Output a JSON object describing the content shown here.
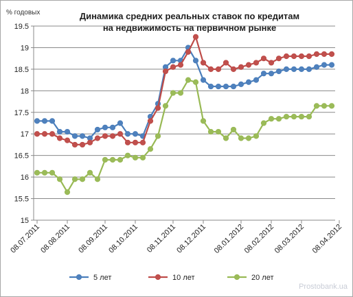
{
  "chart_data": {
    "type": "line",
    "title": [
      "Динамика средних реальных ставок по кредитам",
      "на недвижимость  на первичном рынке"
    ],
    "ylabel": "% годовых",
    "xlabel": "",
    "ylim": [
      15,
      19.5
    ],
    "y_ticks": [
      "15",
      "15.5",
      "16",
      "16.5",
      "17",
      "17.5",
      "18",
      "18.5",
      "19",
      "19.5"
    ],
    "x_tick_labels": [
      "08.07.2011",
      "08.08.2011",
      "08.09.2011",
      "08.10.2011",
      "08.11.2011",
      "08.12.2011",
      "08.01.2012",
      "08.02.2012",
      "08.03.2012",
      "08.04.2012"
    ],
    "x_tick_indices": [
      0,
      4,
      9,
      13,
      18,
      22,
      27,
      31,
      35,
      40
    ],
    "grid": "horizontal",
    "legend_position": "bottom",
    "colors": {
      "grid": "#888888",
      "axis": "#888888"
    },
    "series": [
      {
        "name": "5 лет",
        "color": "#4a7ebb",
        "marker_fill": "#4f81bd",
        "values": [
          17.3,
          17.3,
          17.3,
          17.05,
          17.05,
          16.95,
          16.95,
          16.9,
          17.1,
          17.15,
          17.15,
          17.25,
          17.0,
          17.0,
          16.95,
          17.4,
          17.7,
          18.55,
          18.7,
          18.7,
          19.0,
          18.7,
          18.25,
          18.1,
          18.1,
          18.1,
          18.1,
          18.15,
          18.2,
          18.25,
          18.4,
          18.4,
          18.45,
          18.5,
          18.5,
          18.5,
          18.5,
          18.55,
          18.6,
          18.6
        ]
      },
      {
        "name": "10 лет",
        "color": "#be4b48",
        "marker_fill": "#c0504d",
        "values": [
          17.0,
          17.0,
          17.0,
          16.9,
          16.85,
          16.75,
          16.75,
          16.8,
          16.9,
          16.95,
          16.95,
          17.0,
          16.8,
          16.8,
          16.8,
          17.3,
          17.6,
          18.45,
          18.55,
          18.6,
          18.9,
          19.25,
          18.65,
          18.5,
          18.5,
          18.65,
          18.5,
          18.55,
          18.6,
          18.65,
          18.75,
          18.65,
          18.75,
          18.8,
          18.8,
          18.8,
          18.8,
          18.85,
          18.85,
          18.85
        ]
      },
      {
        "name": "20 лет",
        "color": "#98b954",
        "marker_fill": "#9bbb59",
        "values": [
          16.1,
          16.1,
          16.1,
          15.95,
          15.65,
          15.95,
          15.95,
          16.1,
          15.95,
          16.4,
          16.4,
          16.4,
          16.5,
          16.45,
          16.45,
          16.65,
          16.95,
          17.65,
          17.95,
          17.95,
          18.25,
          18.2,
          17.3,
          17.05,
          17.05,
          16.9,
          17.1,
          16.9,
          16.9,
          16.95,
          17.25,
          17.35,
          17.35,
          17.4,
          17.4,
          17.4,
          17.4,
          17.65,
          17.65,
          17.65
        ]
      }
    ]
  },
  "watermark": "Prostobank.ua"
}
